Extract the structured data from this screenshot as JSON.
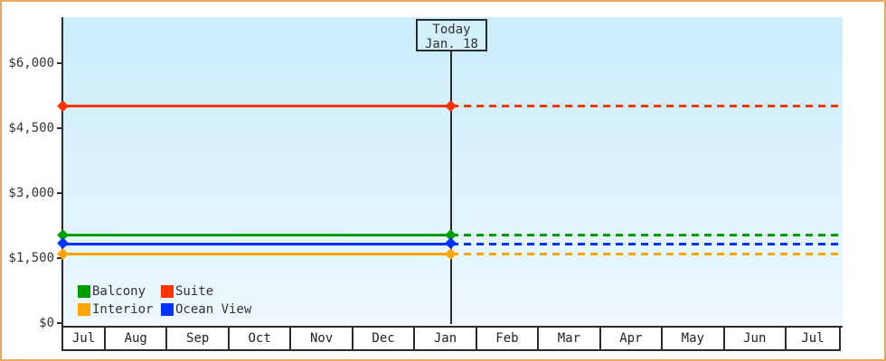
{
  "chart_data": {
    "type": "line",
    "title": "",
    "xlabel": "",
    "ylabel": "",
    "x_categories": [
      "Jul",
      "Aug",
      "Sep",
      "Oct",
      "Nov",
      "Dec",
      "Jan",
      "Feb",
      "Mar",
      "Apr",
      "May",
      "Jun",
      "Jul"
    ],
    "ylim": [
      0,
      6250
    ],
    "yticks": [
      {
        "value": 0,
        "label": "$0"
      },
      {
        "value": 1500,
        "label": "$1,500"
      },
      {
        "value": 3000,
        "label": "$3,000"
      },
      {
        "value": 4500,
        "label": "$4,500"
      },
      {
        "value": 6000,
        "label": "$6,000"
      }
    ],
    "grid": false,
    "legend_position": "bottom-left-inside",
    "series": [
      {
        "name": "Suite",
        "color": "#ff3300",
        "value": 5020,
        "history_style": "solid",
        "forecast_style": "dotted"
      },
      {
        "name": "Balcony",
        "color": "#009e00",
        "value": 2040,
        "history_style": "solid",
        "forecast_style": "dotted"
      },
      {
        "name": "Ocean View",
        "color": "#0033ff",
        "value": 1835,
        "history_style": "solid",
        "forecast_style": "dotted"
      },
      {
        "name": "Interior",
        "color": "#ffa500",
        "value": 1600,
        "history_style": "solid",
        "forecast_style": "dotted"
      }
    ],
    "today_marker": {
      "line1": "Today",
      "line2": "Jan. 18",
      "x_fraction": 0.5
    }
  },
  "legend": {
    "items": [
      {
        "label": "Balcony",
        "color": "#009e00"
      },
      {
        "label": "Suite",
        "color": "#ff3300"
      },
      {
        "label": "Interior",
        "color": "#ffa500"
      },
      {
        "label": "Ocean View",
        "color": "#0033ff"
      }
    ]
  },
  "colors": {
    "frame_border": "#e9a85e",
    "plot_bg_top": "#cbedfb",
    "plot_bg_bottom": "#eef8fe",
    "axis": "#2b2b2b",
    "text": "#333333",
    "today_box_bg": "#d2effc"
  }
}
